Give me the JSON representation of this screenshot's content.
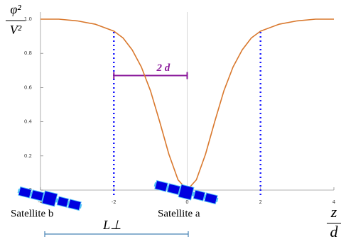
{
  "chart_data": {
    "type": "line",
    "y_label": {
      "numerator": "φ²",
      "denominator": "V²"
    },
    "x_label": {
      "numerator": "z",
      "denominator": "d"
    },
    "x": [
      -4,
      -3.5,
      -3,
      -2.5,
      -2,
      -1.75,
      -1.5,
      -1.25,
      -1,
      -0.75,
      -0.5,
      -0.25,
      0,
      0.25,
      0.5,
      0.75,
      1,
      1.25,
      1.5,
      1.75,
      2,
      2.5,
      3,
      3.5,
      4
    ],
    "values": [
      1.0,
      1.0,
      0.99,
      0.97,
      0.93,
      0.89,
      0.82,
      0.72,
      0.58,
      0.4,
      0.21,
      0.06,
      0,
      0.06,
      0.21,
      0.4,
      0.58,
      0.72,
      0.82,
      0.89,
      0.93,
      0.97,
      0.99,
      1.0,
      1.0
    ],
    "color": "#d9782d",
    "xlim": [
      -4,
      4
    ],
    "ylim": [
      0,
      1
    ],
    "xticks": [
      -4,
      -2,
      0,
      2,
      4
    ],
    "yticks": [
      {
        "value": 0,
        "label": "0.0"
      },
      0.2,
      0.4,
      0.6,
      0.8,
      {
        "value": 1,
        "label": "1.0"
      }
    ],
    "markers": {
      "x": [
        -2,
        2
      ],
      "color": "#1a1aff"
    },
    "bracket": {
      "label": "2 d",
      "from": -2,
      "to": 0,
      "y": 0.67,
      "color": "#8b1a9b"
    },
    "annotations": {
      "satellite_b": "Satellite b",
      "satellite_a": "Satellite a",
      "baseline": "L⊥"
    }
  }
}
